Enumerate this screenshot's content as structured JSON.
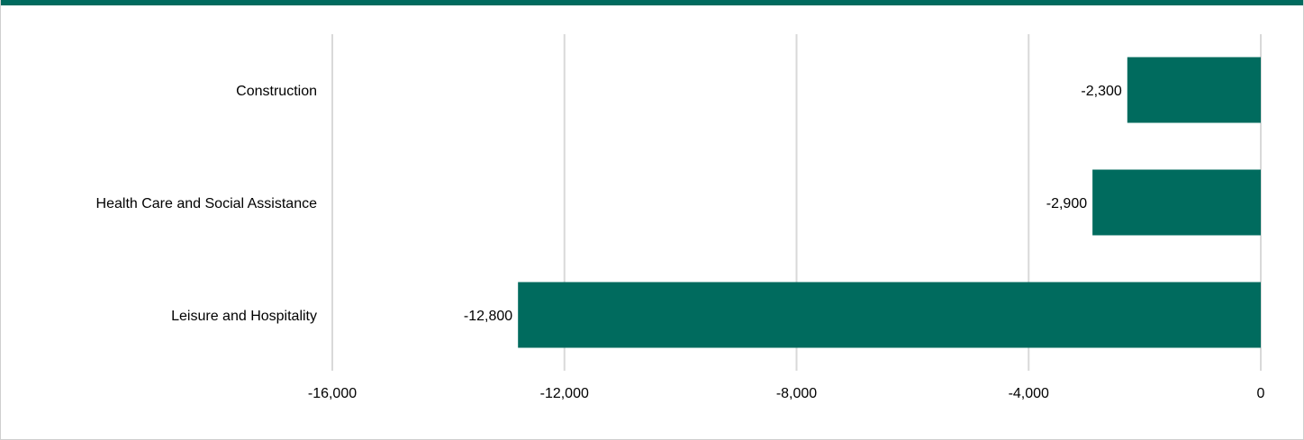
{
  "colors": {
    "accent": "#006b5e",
    "grid": "#d9d9d9",
    "text": "#000000"
  },
  "chart_data": {
    "type": "bar",
    "orientation": "horizontal",
    "categories": [
      "Construction",
      "Health Care and Social Assistance",
      "Leisure and Hospitality"
    ],
    "values": [
      -2300,
      -2900,
      -12800
    ],
    "value_labels": [
      "-2,300",
      "-2,900",
      "-12,800"
    ],
    "xlim": [
      -16000,
      0
    ],
    "ticks": [
      -16000,
      -12000,
      -8000,
      -4000,
      0
    ],
    "tick_labels": [
      "-16,000",
      "-12,000",
      "-8,000",
      "-4,000",
      "0"
    ],
    "grid": true,
    "legend": "none"
  }
}
